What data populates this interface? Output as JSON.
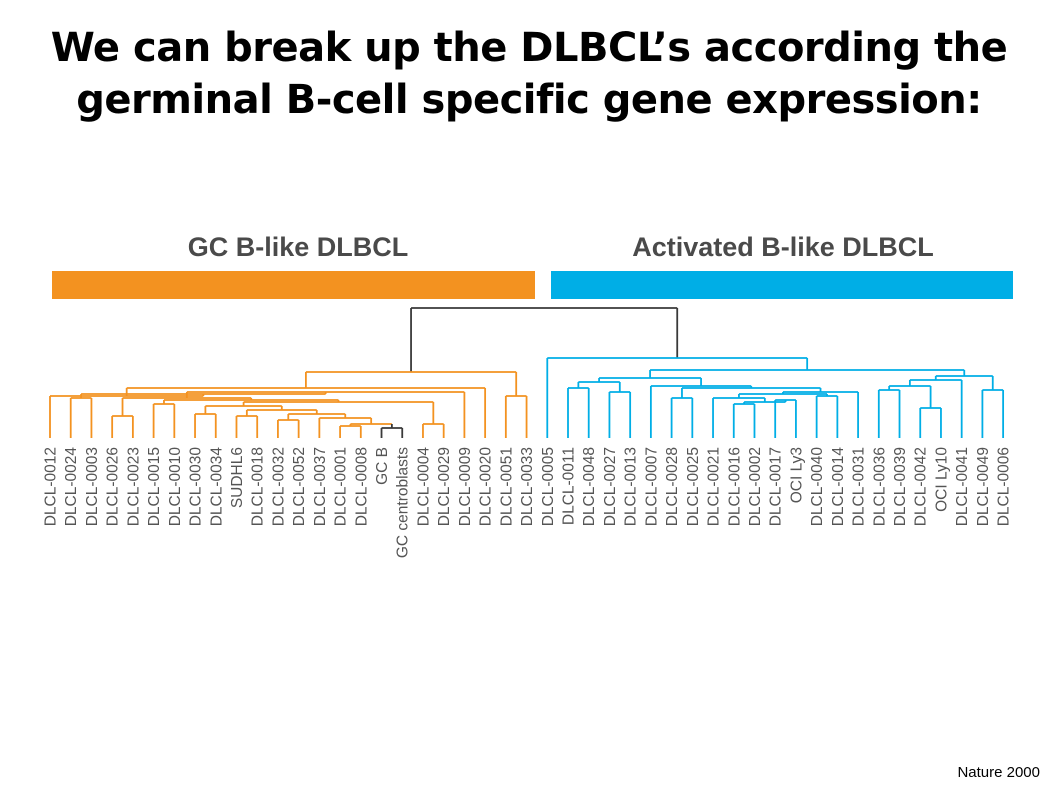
{
  "slide": {
    "title_line1": "We can break up the DLBCL’s according the",
    "title_line2": "germinal B-cell specific gene expression:",
    "citation": "Nature 2000"
  },
  "figure": {
    "colors": {
      "gc_group": "#f39220",
      "activated_group": "#00aee6",
      "root_link": "#3a3a3a",
      "label_text": "#555555",
      "group_label_text": "#4a4a4a"
    },
    "groups": [
      {
        "key": "gc",
        "label": "GC B-like DLBCL"
      },
      {
        "key": "activated",
        "label": "Activated B-like DLBCL"
      }
    ],
    "leaves": [
      {
        "label": "DLCL-0012",
        "group": "gc"
      },
      {
        "label": "DLCL-0024",
        "group": "gc"
      },
      {
        "label": "DLCL-0003",
        "group": "gc"
      },
      {
        "label": "DLCL-0026",
        "group": "gc"
      },
      {
        "label": "DLCL-0023",
        "group": "gc"
      },
      {
        "label": "DLCL-0015",
        "group": "gc"
      },
      {
        "label": "DLCL-0010",
        "group": "gc"
      },
      {
        "label": "DLCL-0030",
        "group": "gc"
      },
      {
        "label": "DLCL-0034",
        "group": "gc"
      },
      {
        "label": "SUDHL6",
        "group": "gc"
      },
      {
        "label": "DLCL-0018",
        "group": "gc"
      },
      {
        "label": "DLCL-0032",
        "group": "gc"
      },
      {
        "label": "DLCL-0052",
        "group": "gc"
      },
      {
        "label": "DLCL-0037",
        "group": "gc"
      },
      {
        "label": "DLCL-0001",
        "group": "gc"
      },
      {
        "label": "DLCL-0008",
        "group": "gc"
      },
      {
        "label": "GC B",
        "group": "reference"
      },
      {
        "label": "GC centroblasts",
        "group": "reference"
      },
      {
        "label": "DLCL-0004",
        "group": "gc"
      },
      {
        "label": "DLCL-0029",
        "group": "gc"
      },
      {
        "label": "DLCL-0009",
        "group": "gc"
      },
      {
        "label": "DLCL-0020",
        "group": "gc"
      },
      {
        "label": "DLCL-0051",
        "group": "gc"
      },
      {
        "label": "DLCL-0033",
        "group": "gc"
      },
      {
        "label": "DLCL-0005",
        "group": "activated"
      },
      {
        "label": "DLCL-0011",
        "group": "activated"
      },
      {
        "label": "DLCL-0048",
        "group": "activated"
      },
      {
        "label": "DLCL-0027",
        "group": "activated"
      },
      {
        "label": "DLCL-0013",
        "group": "activated"
      },
      {
        "label": "DLCL-0007",
        "group": "activated"
      },
      {
        "label": "DLCL-0028",
        "group": "activated"
      },
      {
        "label": "DLCL-0025",
        "group": "activated"
      },
      {
        "label": "DLCL-0021",
        "group": "activated"
      },
      {
        "label": "DLCL-0016",
        "group": "activated"
      },
      {
        "label": "DLCL-0002",
        "group": "activated"
      },
      {
        "label": "DLCL-0017",
        "group": "activated"
      },
      {
        "label": "OCI Ly3",
        "group": "activated"
      },
      {
        "label": "DLCL-0040",
        "group": "activated"
      },
      {
        "label": "DLCL-0014",
        "group": "activated"
      },
      {
        "label": "DLCL-0031",
        "group": "activated"
      },
      {
        "label": "DLCL-0036",
        "group": "activated"
      },
      {
        "label": "DLCL-0039",
        "group": "activated"
      },
      {
        "label": "DLCL-0042",
        "group": "activated"
      },
      {
        "label": "OCI Ly10",
        "group": "activated"
      },
      {
        "label": "DLCL-0041",
        "group": "activated"
      },
      {
        "label": "DLCL-0049",
        "group": "activated"
      },
      {
        "label": "DLCL-0006",
        "group": "activated"
      }
    ]
  }
}
